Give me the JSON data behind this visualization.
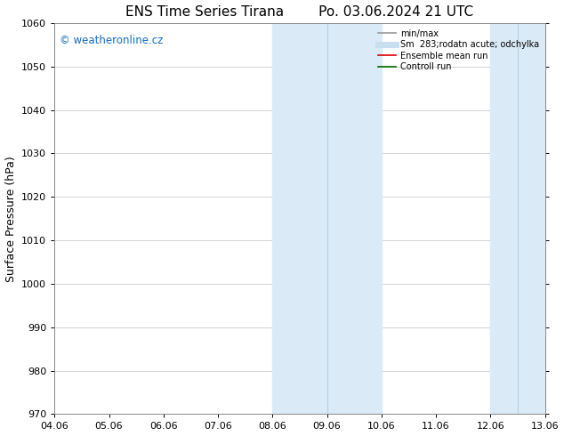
{
  "title": "ENS Time Series Tirana        Po. 03.06.2024 21 UTC",
  "ylabel": "Surface Pressure (hPa)",
  "ylim": [
    970,
    1060
  ],
  "yticks": [
    970,
    980,
    990,
    1000,
    1010,
    1020,
    1030,
    1040,
    1050,
    1060
  ],
  "xtick_labels": [
    "04.06",
    "05.06",
    "06.06",
    "07.06",
    "08.06",
    "09.06",
    "10.06",
    "11.06",
    "12.06",
    "13.06"
  ],
  "xtick_positions": [
    0,
    1,
    2,
    3,
    4,
    5,
    6,
    7,
    8,
    9
  ],
  "xlim": [
    0,
    9
  ],
  "shaded_bands": [
    {
      "x_start": 4.0,
      "x_end": 4.5,
      "divider": 4.5
    },
    {
      "x_start": 4.5,
      "x_end": 6.0,
      "divider": null
    },
    {
      "x_start": 8.0,
      "x_end": 8.5,
      "divider": 8.5
    },
    {
      "x_start": 8.5,
      "x_end": 9.0,
      "divider": null
    }
  ],
  "band_color": "#daeaf6",
  "divider_color": "#b8d0e8",
  "watermark_text": "© weatheronline.cz",
  "watermark_color": "#1a6eb5",
  "legend_items": [
    {
      "label": "min/max",
      "color": "#999999",
      "lw": 1.2
    },
    {
      "label": "Sm  283;rodatn acute; odchylka",
      "color": "#c8dff0",
      "lw": 5
    },
    {
      "label": "Ensemble mean run",
      "color": "#dd0000",
      "lw": 1.2
    },
    {
      "label": "Controll run",
      "color": "#006600",
      "lw": 1.2
    }
  ],
  "bg_color": "#ffffff",
  "grid_color": "#cccccc",
  "tick_label_fontsize": 8,
  "axis_label_fontsize": 9,
  "title_fontsize": 11
}
